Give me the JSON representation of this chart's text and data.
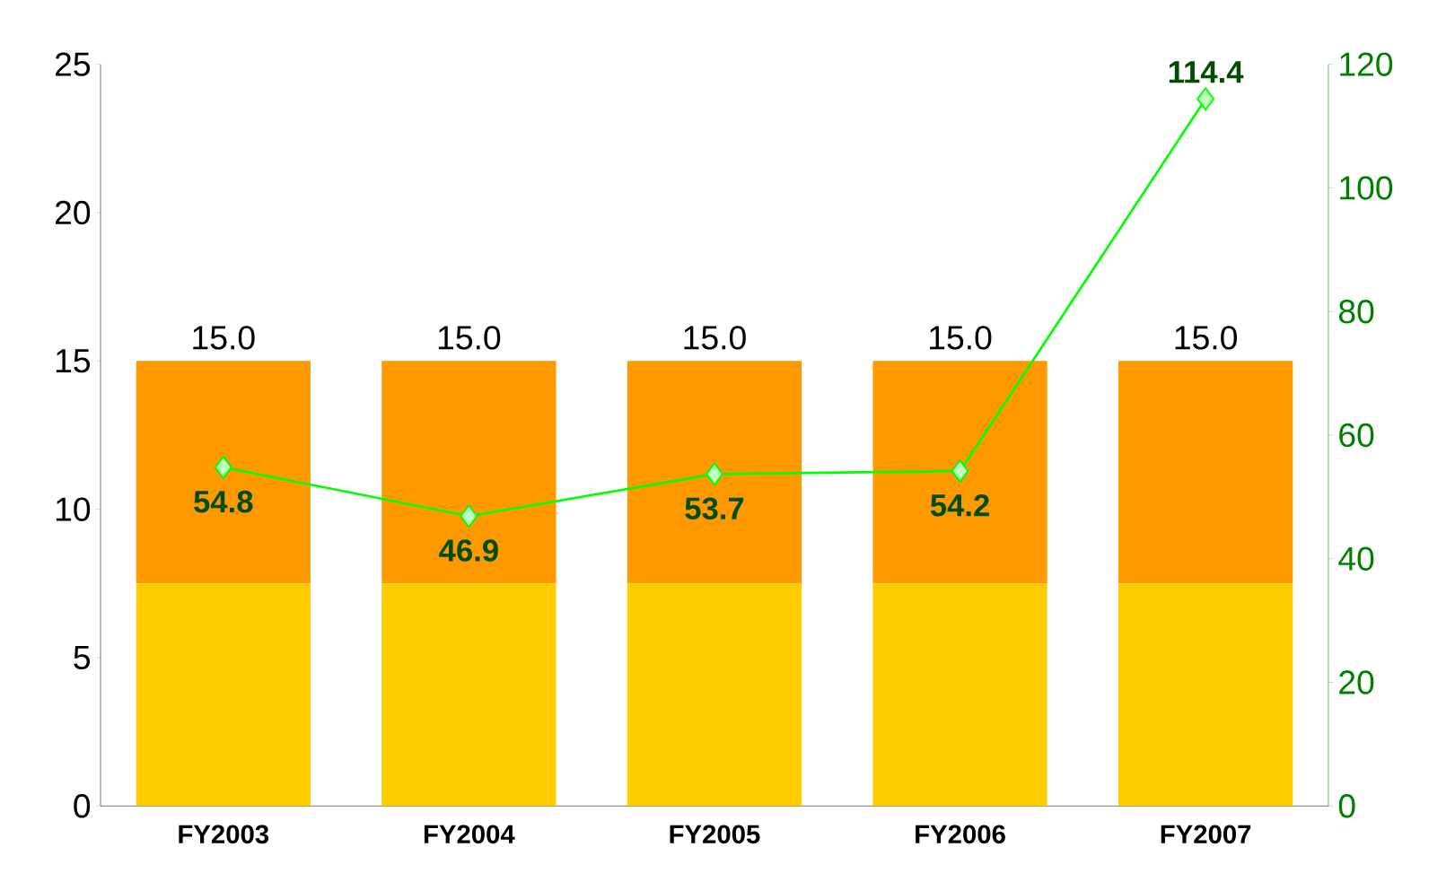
{
  "chart_data": {
    "type": "bar",
    "stacked": true,
    "categories": [
      "FY2003",
      "FY2004",
      "FY2005",
      "FY2006",
      "FY2007"
    ],
    "series": [
      {
        "color": "#ffcc00",
        "values": [
          7.5,
          7.5,
          7.5,
          7.5,
          7.5
        ]
      },
      {
        "color": "#ff9900",
        "values": [
          7.5,
          7.5,
          7.5,
          7.5,
          7.5
        ]
      },
      {
        "type": "line",
        "axis": "y2",
        "color": "#00ff00",
        "marker": "diamond",
        "line_style": "solid",
        "values": [
          54.8,
          46.9,
          53.7,
          54.2,
          114.4
        ],
        "value_labels": [
          "54.8",
          "46.9",
          "53.7",
          "54.2",
          "114.4"
        ]
      }
    ],
    "totals": [
      "15.0",
      "15.0",
      "15.0",
      "15.0",
      "15.0"
    ],
    "ylim": [
      0,
      25
    ],
    "yticks": [
      0,
      5,
      10,
      15,
      20,
      25
    ],
    "y2lim": [
      0,
      120
    ],
    "y2ticks": [
      0,
      20,
      40,
      60,
      80,
      100,
      120
    ],
    "grid": false
  }
}
